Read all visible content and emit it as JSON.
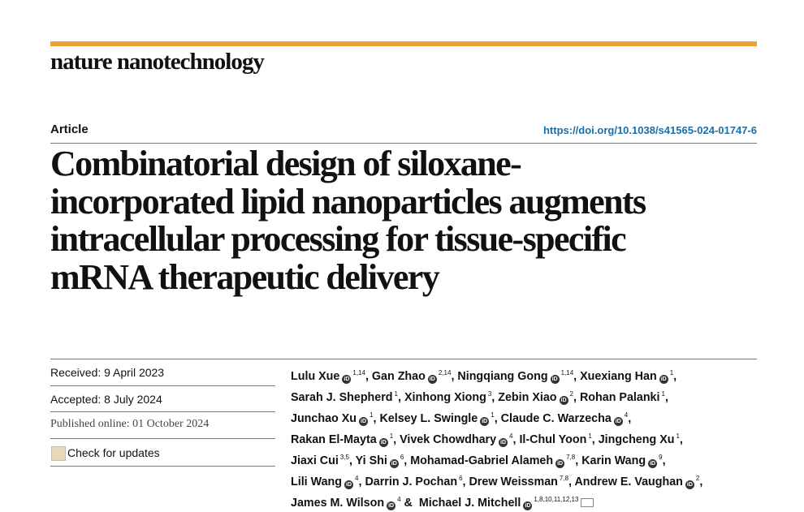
{
  "header": {
    "journal": "nature nanotechnology"
  },
  "article": {
    "type": "Article",
    "doi": "https://doi.org/10.1038/s41565-024-01747-6",
    "title": [
      "Combinatorial design of siloxane-",
      "incorporated lipid nanoparticles augments",
      "intracellular processing for tissue-specific",
      "mRNA therapeutic delivery"
    ]
  },
  "dates": {
    "received": "Received: 9 April 2023",
    "accepted": "Accepted: 8 July 2024",
    "published": "Published online: 01 October 2024",
    "updates": "Check for updates"
  },
  "authors": [
    [
      {
        "name": "Lulu Xue",
        "orcid": true,
        "sup": "1,14",
        "sep": ","
      },
      {
        "name": "Gan Zhao",
        "orcid": true,
        "sup": "2,14",
        "sep": ","
      },
      {
        "name": "Ningqiang Gong",
        "orcid": true,
        "sup": "1,14",
        "sep": ","
      },
      {
        "name": "Xuexiang Han",
        "orcid": true,
        "sup": "1",
        "sep": ","
      }
    ],
    [
      {
        "name": "Sarah J. Shepherd",
        "orcid": false,
        "sup": "1",
        "sep": ","
      },
      {
        "name": "Xinhong Xiong",
        "orcid": false,
        "sup": "3",
        "sep": ","
      },
      {
        "name": "Zebin Xiao",
        "orcid": true,
        "sup": "2",
        "sep": ","
      },
      {
        "name": "Rohan Palanki",
        "orcid": false,
        "sup": "1",
        "sep": ","
      }
    ],
    [
      {
        "name": "Junchao Xu",
        "orcid": true,
        "sup": "1",
        "sep": ","
      },
      {
        "name": "Kelsey L. Swingle",
        "orcid": true,
        "sup": "1",
        "sep": ","
      },
      {
        "name": "Claude C. Warzecha",
        "orcid": true,
        "sup": "4",
        "sep": ","
      }
    ],
    [
      {
        "name": "Rakan El-Mayta",
        "orcid": true,
        "sup": "1",
        "sep": ","
      },
      {
        "name": "Vivek Chowdhary",
        "orcid": true,
        "sup": "4",
        "sep": ","
      },
      {
        "name": "Il-Chul Yoon",
        "orcid": false,
        "sup": "1",
        "sep": ","
      },
      {
        "name": "Jingcheng Xu",
        "orcid": false,
        "sup": "1",
        "sep": ","
      }
    ],
    [
      {
        "name": "Jiaxi Cui",
        "orcid": false,
        "sup": "3,5",
        "sep": ","
      },
      {
        "name": "Yi Shi",
        "orcid": true,
        "sup": "6",
        "sep": ","
      },
      {
        "name": "Mohamad-Gabriel Alameh",
        "orcid": true,
        "sup": "7,8",
        "sep": ","
      },
      {
        "name": "Karin Wang",
        "orcid": true,
        "sup": "9",
        "sep": ","
      }
    ],
    [
      {
        "name": "Lili Wang",
        "orcid": true,
        "sup": "4",
        "sep": ","
      },
      {
        "name": "Darrin J. Pochan",
        "orcid": false,
        "sup": "6",
        "sep": ","
      },
      {
        "name": "Drew Weissman",
        "orcid": false,
        "sup": "7,8",
        "sep": ","
      },
      {
        "name": "Andrew E. Vaughan",
        "orcid": true,
        "sup": "2",
        "sep": ","
      }
    ],
    [
      {
        "name": "James M. Wilson",
        "orcid": true,
        "sup": "4",
        "sep": "&"
      },
      {
        "name": "Michael J. Mitchell",
        "orcid": true,
        "sup": "1,8,10,11,12,13",
        "email": true
      }
    ]
  ]
}
